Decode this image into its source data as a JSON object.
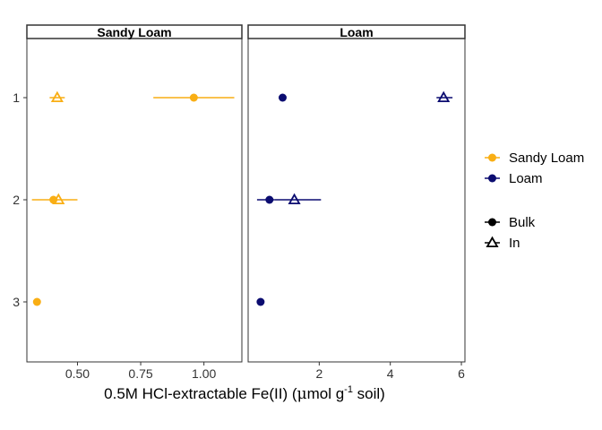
{
  "chart_data": {
    "type": "scatter",
    "xlabel_main": "0.5M HCl-extractable Fe(II) (",
    "xlabel_mu": "μ",
    "xlabel_unit": "mol g",
    "xlabel_sup": "-1",
    "xlabel_end": " soil)",
    "ylabel": "",
    "y_categories": [
      "1",
      "2",
      "3"
    ],
    "colors": {
      "Sandy Loam": "#F9AE14",
      "Loam": "#0B0C70"
    },
    "legend": {
      "color_entries": [
        "Sandy Loam",
        "Loam"
      ],
      "shape_entries": [
        {
          "label": "Bulk",
          "shape": "circle"
        },
        {
          "label": "In",
          "shape": "triangle"
        }
      ],
      "position": "right"
    },
    "panels": [
      {
        "title": "Sandy Loam",
        "xlim": [
          0.3,
          1.15
        ],
        "xticks": [
          0.5,
          0.75,
          1.0
        ],
        "xtick_labels": [
          "0.50",
          "0.75",
          "1.00"
        ],
        "points": [
          {
            "y": "1",
            "type": "Bulk",
            "x": 0.96,
            "xmin": 0.8,
            "xmax": 1.12
          },
          {
            "y": "1",
            "type": "In",
            "x": 0.42,
            "xmin": 0.39,
            "xmax": 0.45
          },
          {
            "y": "2",
            "type": "Bulk",
            "x": 0.405,
            "xmin": 0.32,
            "xmax": 0.5
          },
          {
            "y": "2",
            "type": "In",
            "x": 0.425,
            "xmin": 0.425,
            "xmax": 0.425
          },
          {
            "y": "3",
            "type": "Bulk",
            "x": 0.34,
            "xmin": 0.33,
            "xmax": 0.35
          }
        ]
      },
      {
        "title": "Loam",
        "xlim": [
          0.0,
          6.1
        ],
        "xticks": [
          2,
          4,
          6
        ],
        "xtick_labels": [
          "2",
          "4",
          "6"
        ],
        "points": [
          {
            "y": "1",
            "type": "Bulk",
            "x": 0.97,
            "xmin": 0.97,
            "xmax": 0.97
          },
          {
            "y": "1",
            "type": "In",
            "x": 5.5,
            "xmin": 5.3,
            "xmax": 5.75
          },
          {
            "y": "2",
            "type": "Bulk",
            "x": 0.6,
            "xmin": 0.25,
            "xmax": 0.75
          },
          {
            "y": "2",
            "type": "In",
            "x": 1.3,
            "xmin": 0.75,
            "xmax": 2.05
          },
          {
            "y": "3",
            "type": "Bulk",
            "x": 0.35,
            "xmin": 0.35,
            "xmax": 0.35
          }
        ]
      }
    ]
  }
}
